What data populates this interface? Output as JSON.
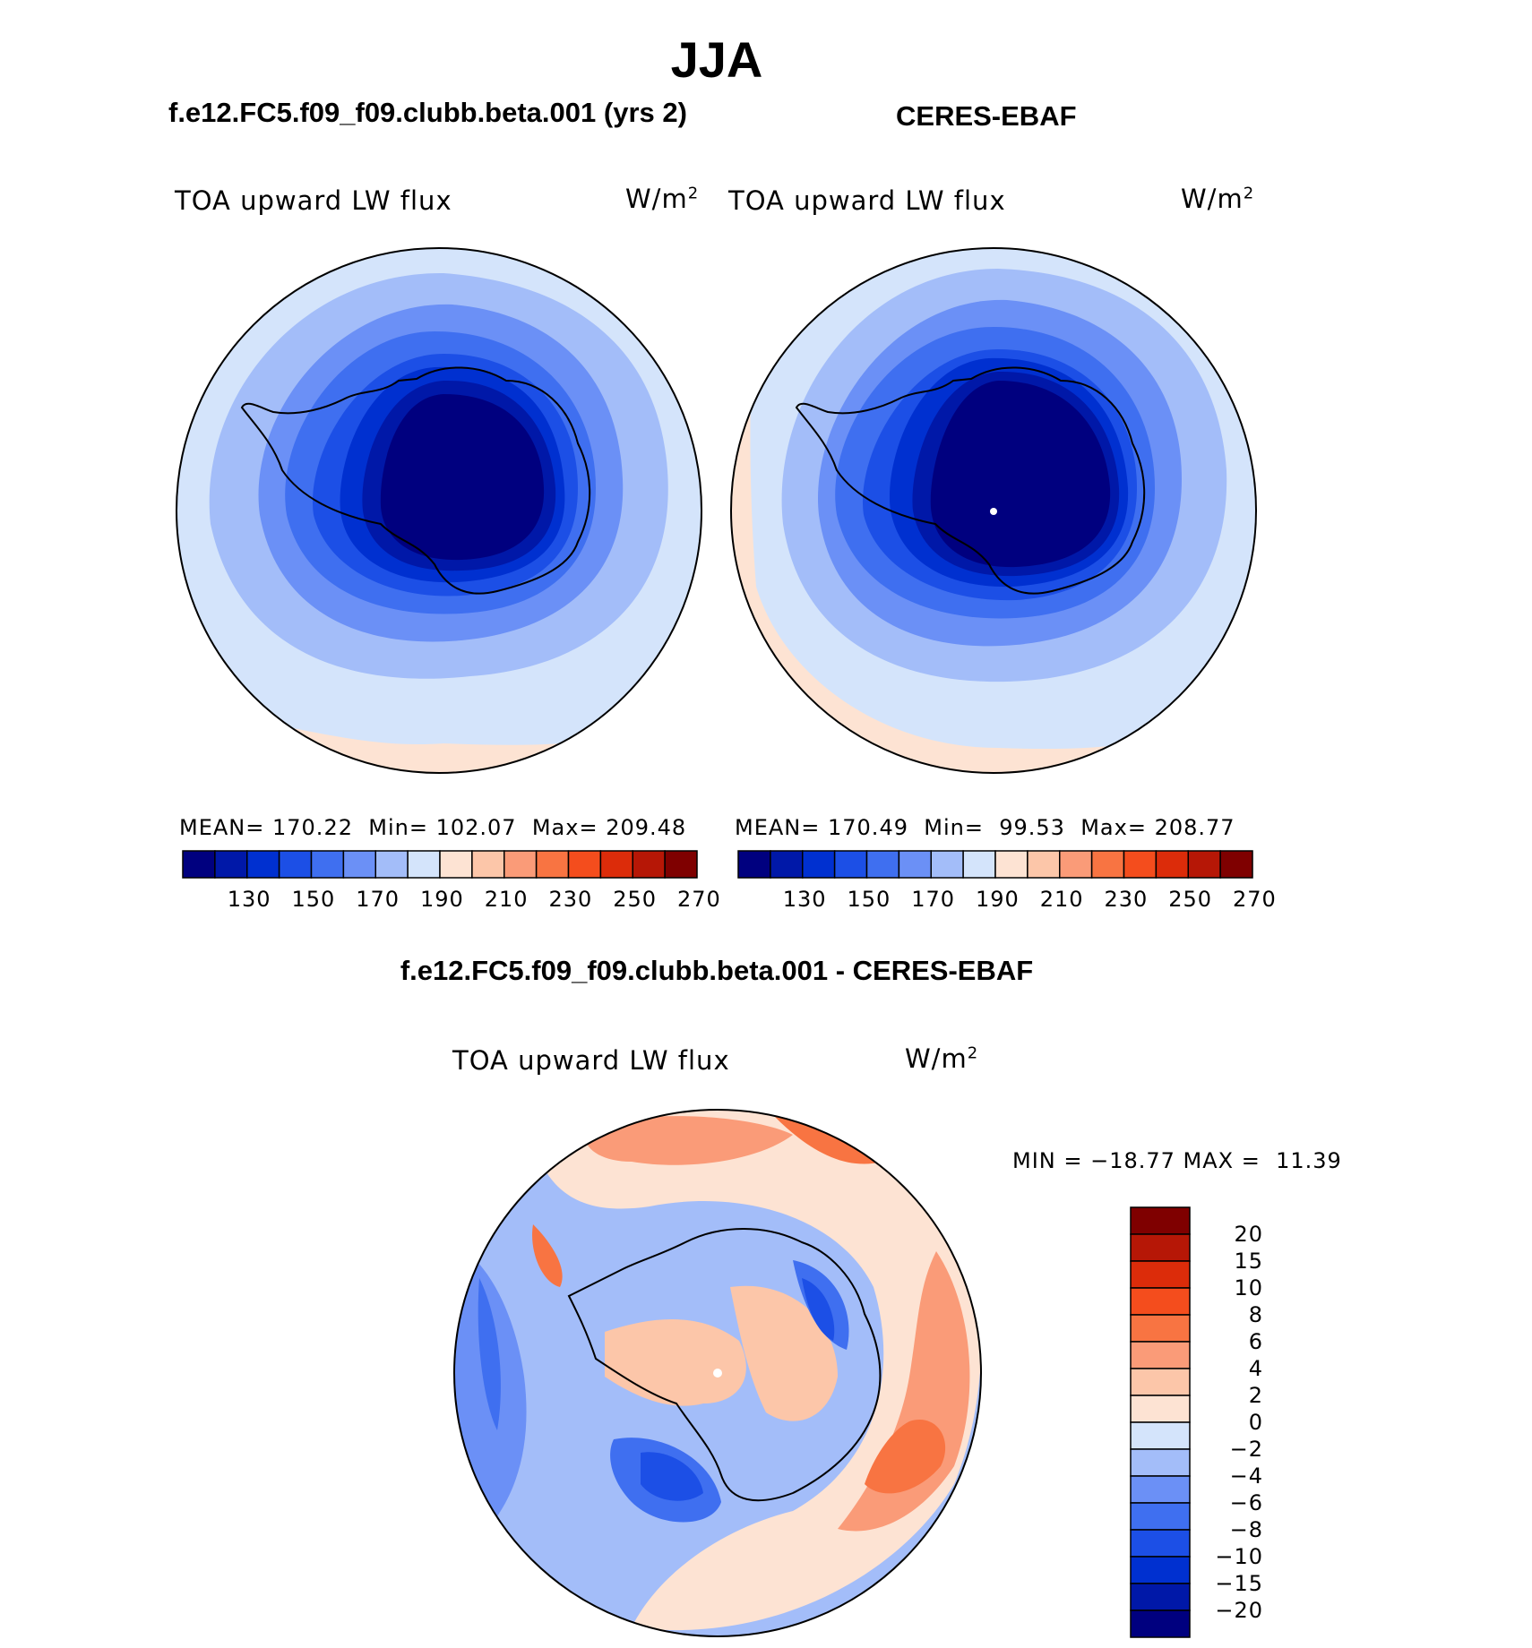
{
  "title": "JJA",
  "panels": [
    {
      "heading": "f.e12.FC5.f09_f09.clubb.beta.001 (yrs 2)",
      "variable": "TOA upward LW flux",
      "units": "W/m",
      "units_exp": "2",
      "mean_label": "MEAN=",
      "mean": "170.22",
      "min_label": "Min=",
      "min": "102.07",
      "max_label": "Max=",
      "max": "209.48",
      "colorbar_ticks": [
        "130",
        "150",
        "170",
        "190",
        "210",
        "230",
        "250",
        "270"
      ]
    },
    {
      "heading": "CERES-EBAF",
      "variable": "TOA upward LW flux",
      "units": "W/m",
      "units_exp": "2",
      "mean_label": "MEAN=",
      "mean": "170.49",
      "min_label": "Min=",
      "min": "99.53",
      "max_label": "Max=",
      "max": "208.77",
      "colorbar_ticks": [
        "130",
        "150",
        "170",
        "190",
        "210",
        "230",
        "250",
        "270"
      ]
    }
  ],
  "difference": {
    "heading": "f.e12.FC5.f09_f09.clubb.beta.001 - CERES-EBAF",
    "variable": "TOA upward LW flux",
    "units": "W/m",
    "units_exp": "2",
    "minmax": "MIN = −18.77 MAX =  11.39",
    "colorbar_ticks": [
      "20",
      "15",
      "10",
      "8",
      "6",
      "4",
      "2",
      "0",
      "−2",
      "−4",
      "−6",
      "−8",
      "−10",
      "−15",
      "−20"
    ]
  },
  "colors": {
    "abs_scale": [
      "#00007f",
      "#0018a8",
      "#0030d0",
      "#1c4fe6",
      "#3f6ff0",
      "#6b90f6",
      "#a3bdf9",
      "#d4e4fb",
      "#fde3d3",
      "#fcc6a9",
      "#fa9b78",
      "#f87442",
      "#f44d1d",
      "#dc2c0a",
      "#b61706",
      "#7f0000"
    ],
    "diff_scale": [
      "#7f0000",
      "#b61706",
      "#dc2c0a",
      "#f44d1d",
      "#f87442",
      "#fa9b78",
      "#fcc6a9",
      "#fde3d3",
      "#d4e4fb",
      "#a3bdf9",
      "#6b90f6",
      "#3f6ff0",
      "#1c4fe6",
      "#0030d0",
      "#0018a8",
      "#00007f"
    ]
  }
}
